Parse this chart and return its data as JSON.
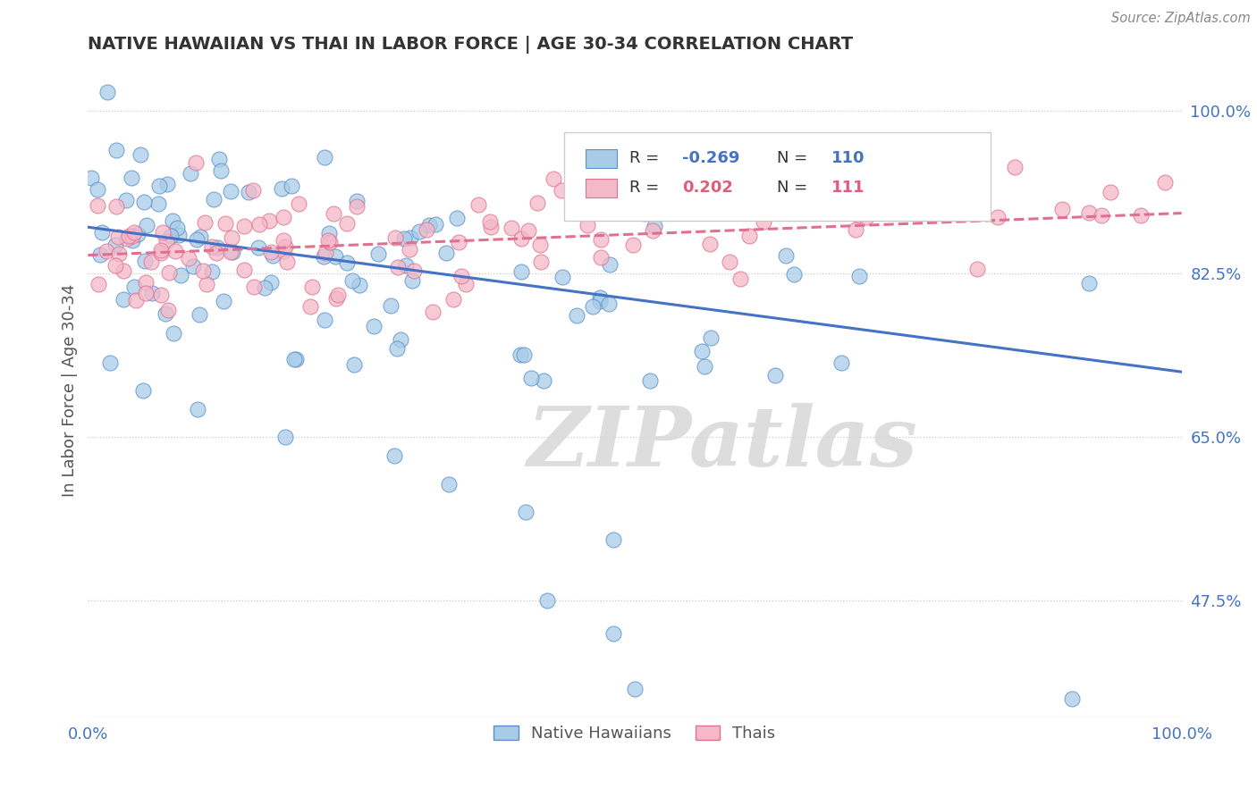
{
  "title": "NATIVE HAWAIIAN VS THAI IN LABOR FORCE | AGE 30-34 CORRELATION CHART",
  "source": "Source: ZipAtlas.com",
  "ylabel": "In Labor Force | Age 30-34",
  "legend_label_blue": "Native Hawaiians",
  "legend_label_pink": "Thais",
  "R_blue": -0.269,
  "N_blue": 110,
  "R_pink": 0.202,
  "N_pink": 111,
  "color_blue_fill": "#a8cce8",
  "color_blue_edge": "#5b8fc9",
  "color_pink_fill": "#f4b8c8",
  "color_pink_edge": "#e07090",
  "color_blue_line": "#4472c4",
  "color_pink_line": "#e07090",
  "color_blue_text": "#4472c4",
  "color_pink_text": "#e05c7a",
  "xlim": [
    0.0,
    1.0
  ],
  "ylim": [
    0.35,
    1.05
  ],
  "yticks": [
    0.475,
    0.65,
    0.825,
    1.0
  ],
  "ytick_labels": [
    "47.5%",
    "65.0%",
    "82.5%",
    "100.0%"
  ],
  "xticks": [
    0.0,
    1.0
  ],
  "xtick_labels": [
    "0.0%",
    "100.0%"
  ],
  "blue_trend_start": 0.875,
  "blue_trend_end": 0.72,
  "pink_trend_start": 0.845,
  "pink_trend_end": 0.89,
  "watermark": "ZIPatlas",
  "background_color": "#ffffff",
  "grid_color": "#c8c8c8",
  "title_color": "#333333",
  "ylabel_color": "#555555"
}
